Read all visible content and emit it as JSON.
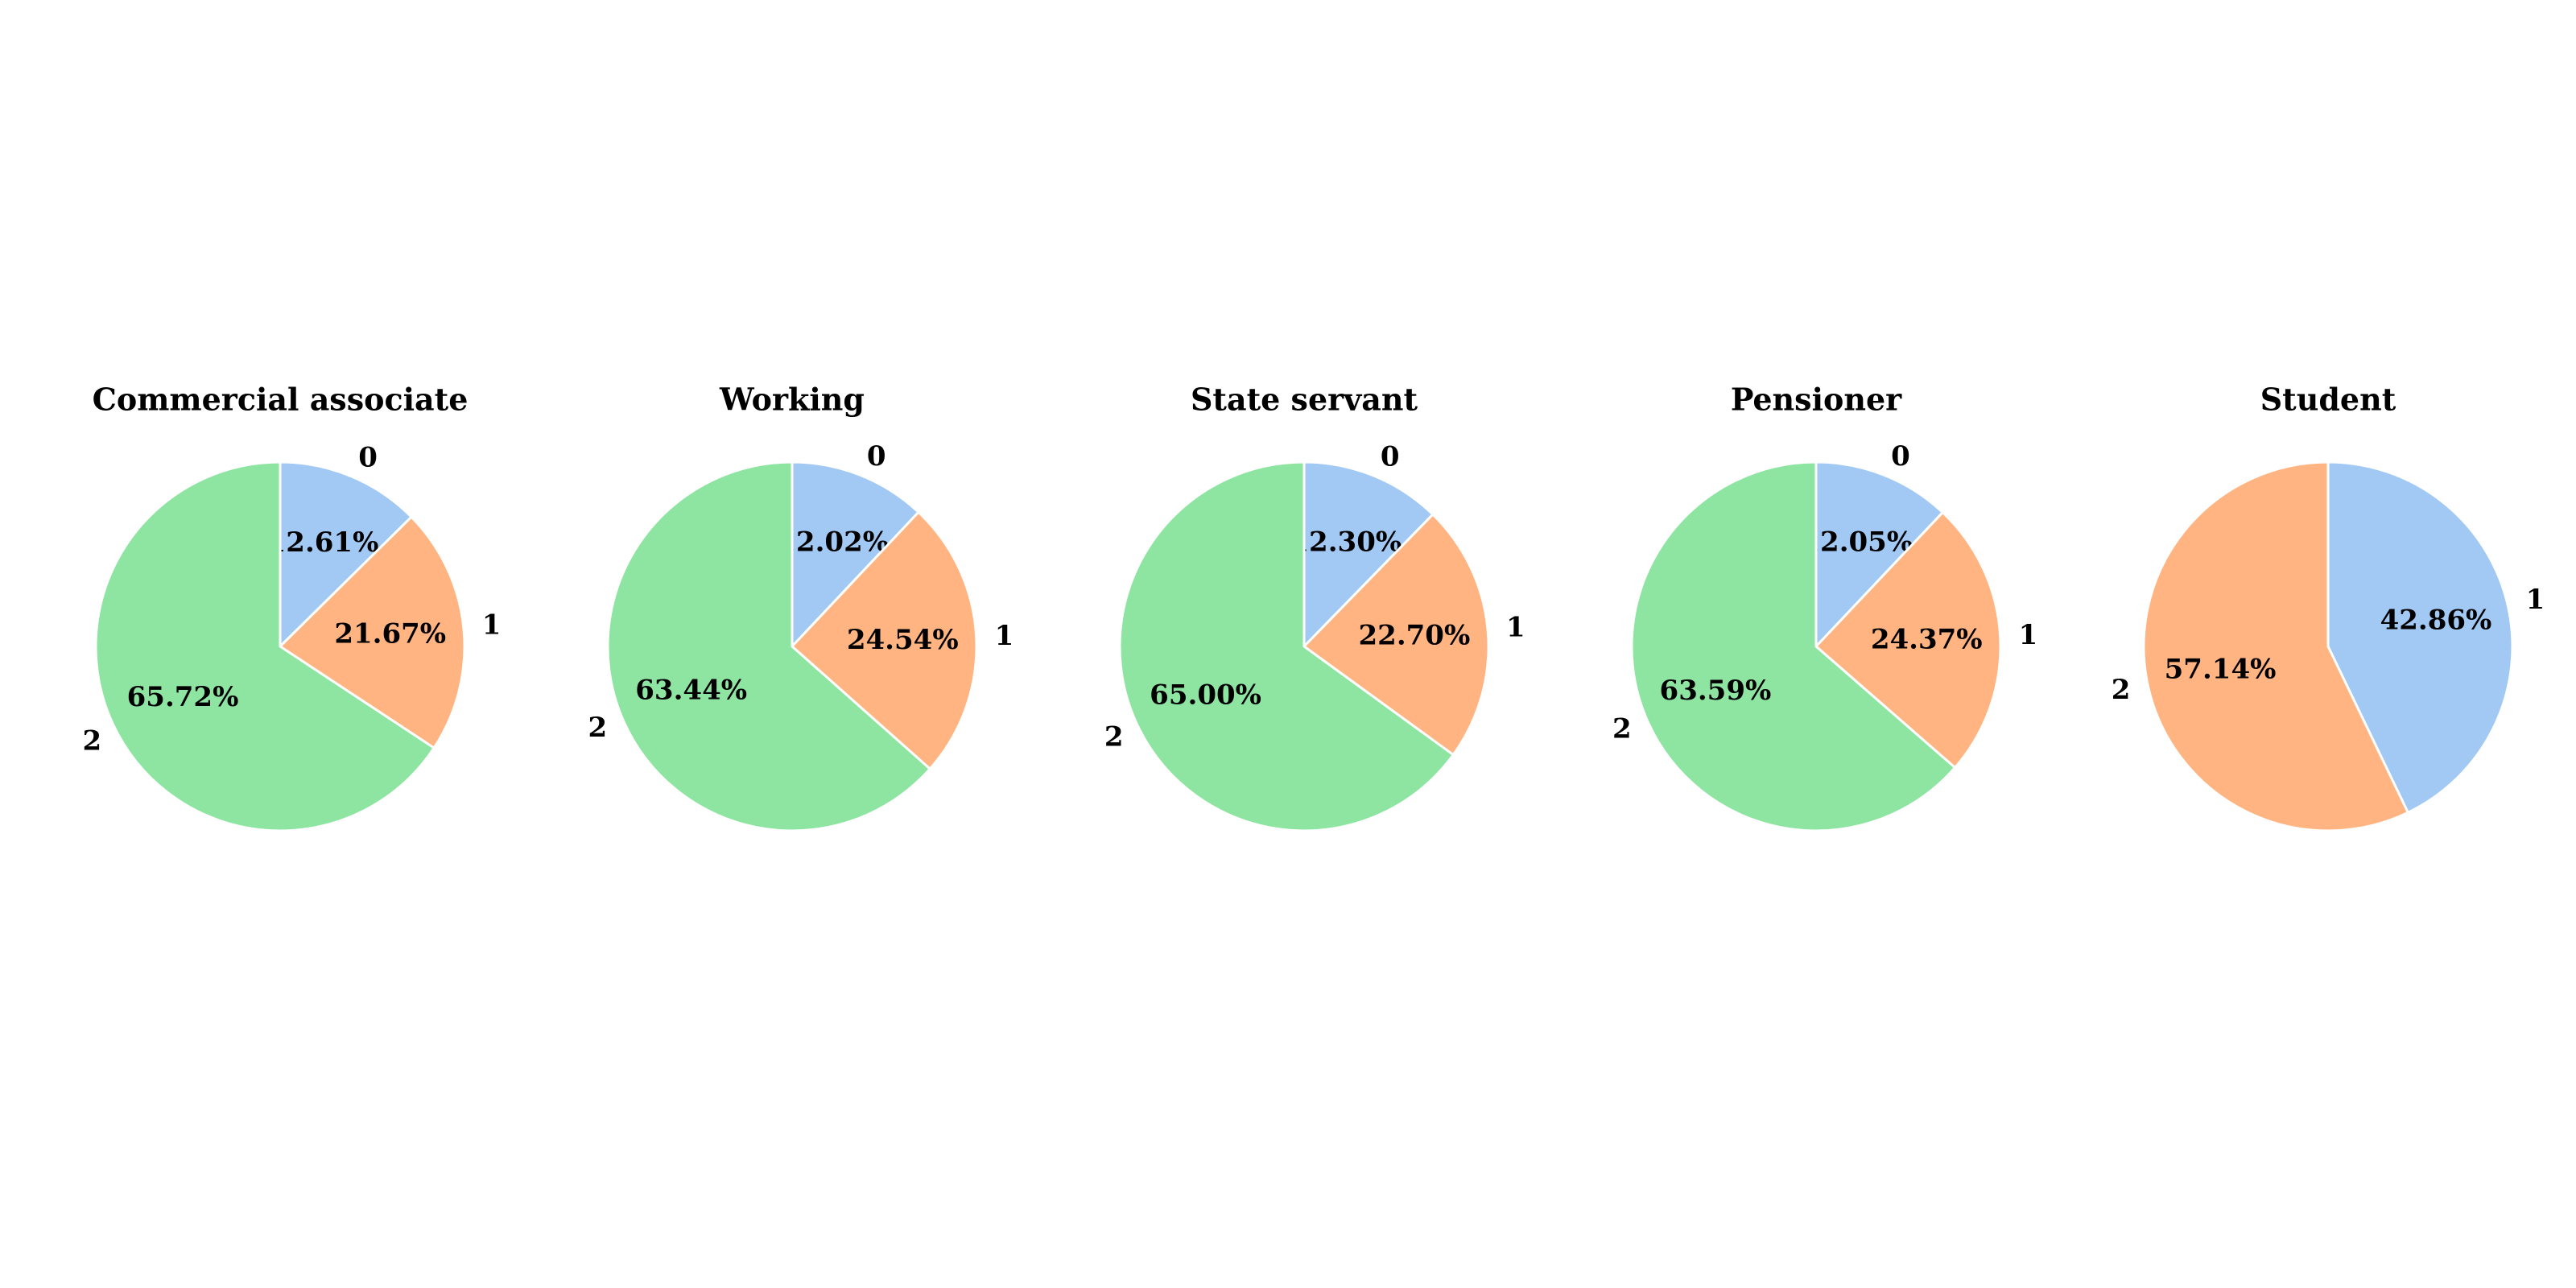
{
  "chart_data": [
    {
      "type": "pie",
      "title": "Commercial associate",
      "labels": [
        "0",
        "1",
        "2"
      ],
      "values": [
        12.61,
        21.67,
        65.72
      ],
      "value_labels": [
        "12.61%",
        "21.67%",
        "65.72%"
      ],
      "colors": [
        "#a1c9f4",
        "#ffb482",
        "#8de5a1"
      ],
      "start_angle_deg": 90,
      "direction": "clockwise"
    },
    {
      "type": "pie",
      "title": "Working",
      "labels": [
        "0",
        "1",
        "2"
      ],
      "values": [
        12.02,
        24.54,
        63.44
      ],
      "value_labels": [
        "12.02%",
        "24.54%",
        "63.44%"
      ],
      "colors": [
        "#a1c9f4",
        "#ffb482",
        "#8de5a1"
      ],
      "start_angle_deg": 90,
      "direction": "clockwise"
    },
    {
      "type": "pie",
      "title": "State servant",
      "labels": [
        "0",
        "1",
        "2"
      ],
      "values": [
        12.3,
        22.7,
        65.0
      ],
      "value_labels": [
        "12.30%",
        "22.70%",
        "65.00%"
      ],
      "colors": [
        "#a1c9f4",
        "#ffb482",
        "#8de5a1"
      ],
      "start_angle_deg": 90,
      "direction": "clockwise"
    },
    {
      "type": "pie",
      "title": "Pensioner",
      "labels": [
        "0",
        "1",
        "2"
      ],
      "values": [
        12.05,
        24.37,
        63.59
      ],
      "value_labels": [
        "12.05%",
        "24.37%",
        "63.59%"
      ],
      "colors": [
        "#a1c9f4",
        "#ffb482",
        "#8de5a1"
      ],
      "start_angle_deg": 90,
      "direction": "clockwise"
    },
    {
      "type": "pie",
      "title": "Student",
      "labels": [
        "1",
        "2"
      ],
      "values": [
        42.86,
        57.14
      ],
      "value_labels": [
        "42.86%",
        "57.14%"
      ],
      "colors": [
        "#a1c9f4",
        "#ffb482"
      ],
      "start_angle_deg": 90,
      "direction": "clockwise"
    }
  ]
}
